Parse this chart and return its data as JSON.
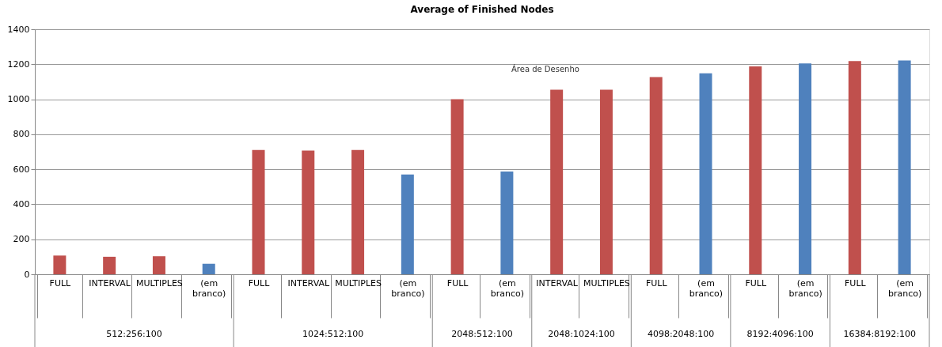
{
  "chart_data": {
    "type": "bar",
    "title": "Average of Finished Nodes",
    "categories": [
      "FULL",
      "INTERVAL",
      "MULTIPLES",
      "(em branco)",
      "FULL",
      "INTERVAL",
      "MULTIPLES",
      "(em branco)",
      "FULL",
      "(em branco)",
      "INTERVAL",
      "MULTIPLES",
      "FULL",
      "(em branco)",
      "FULL",
      "(em branco)",
      "FULL",
      "(em branco)"
    ],
    "values": [
      107,
      100,
      103,
      60,
      710,
      707,
      710,
      570,
      1000,
      587,
      1055,
      1055,
      1127,
      1148,
      1188,
      1205,
      1218,
      1222
    ],
    "colors": [
      "#c0504d",
      "#c0504d",
      "#c0504d",
      "#4f81bd",
      "#c0504d",
      "#c0504d",
      "#c0504d",
      "#4f81bd",
      "#c0504d",
      "#4f81bd",
      "#c0504d",
      "#c0504d",
      "#c0504d",
      "#4f81bd",
      "#c0504d",
      "#4f81bd",
      "#c0504d",
      "#4f81bd"
    ],
    "ylim": [
      0,
      1400
    ],
    "yticks": [
      0,
      200,
      400,
      600,
      800,
      1000,
      1200,
      1400
    ],
    "grid": "y",
    "annotations": [
      "512:256:100",
      "1024:512:100",
      "2048:512:100",
      "2048:1024:100",
      "4098:2048:100",
      "8192:4096:100",
      "16384:8192:100",
      "Área de Desenho"
    ]
  }
}
